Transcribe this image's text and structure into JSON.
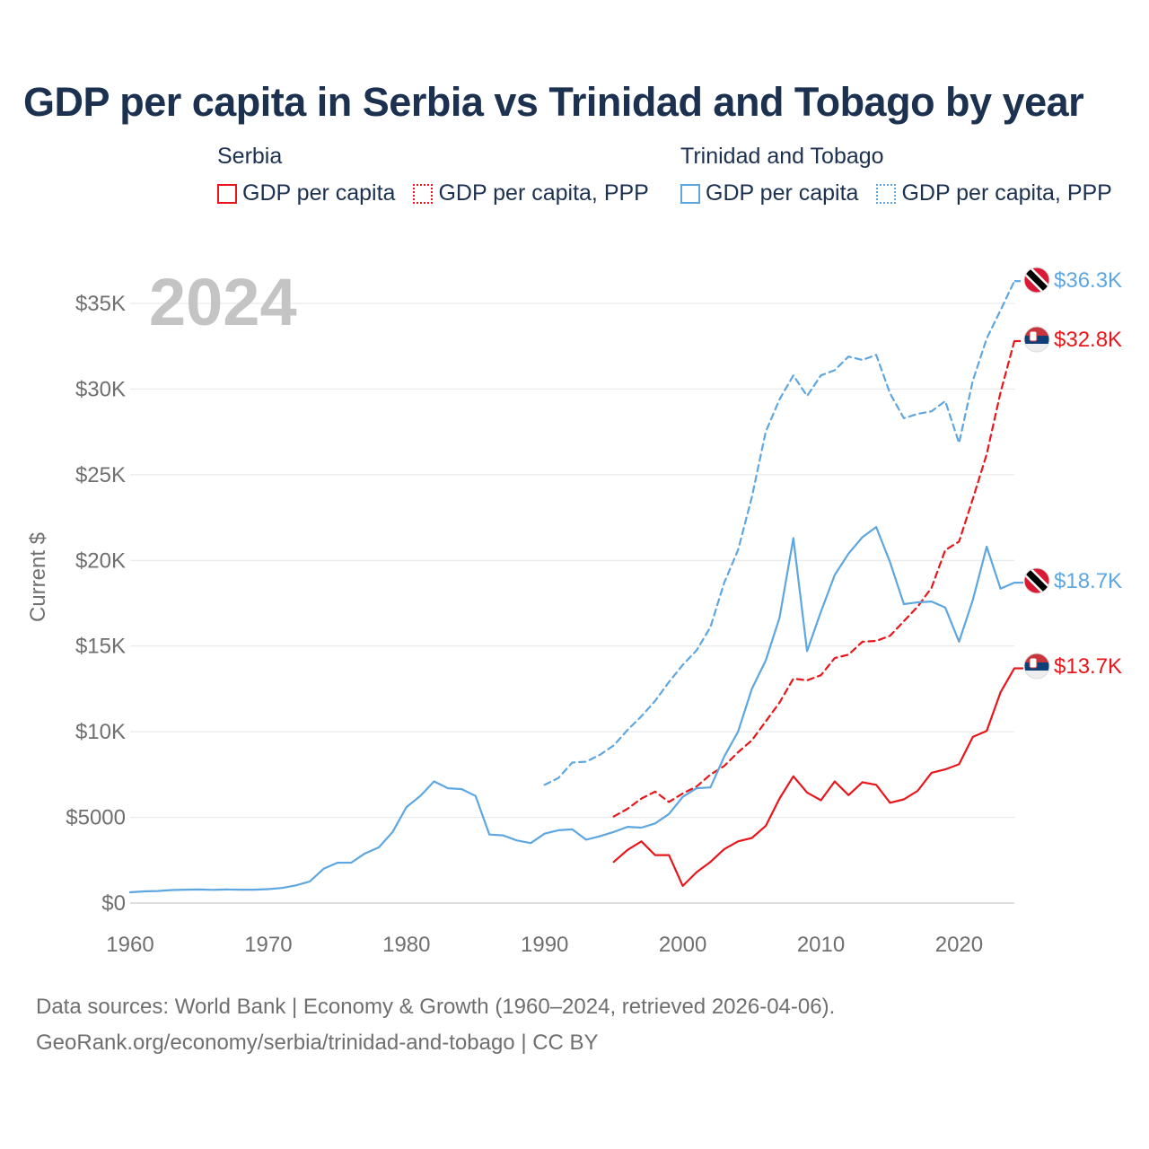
{
  "title": "GDP per capita in Serbia vs Trinidad and Tobago by year",
  "legend": {
    "groups": [
      {
        "country": "Serbia",
        "color": "#e8161b",
        "items": [
          "GDP per capita",
          "GDP per capita, PPP"
        ]
      },
      {
        "country": "Trinidad and Tobago",
        "color": "#5ea6e0",
        "items": [
          "GDP per capita",
          "GDP per capita, PPP"
        ]
      }
    ]
  },
  "footer": {
    "sources": "Data sources: World Bank | Economy & Growth (1960–2024, retrieved 2026-04-06).",
    "url": "GeoRank.org/economy/serbia/trinidad-and-tobago | CC BY"
  },
  "chart_data": {
    "type": "line",
    "title": "GDP per capita in Serbia vs Trinidad and Tobago by year",
    "year_label": "2024",
    "xlabel": "",
    "ylabel": "Current $",
    "xlim": [
      1960,
      2024
    ],
    "ylim": [
      0,
      36300
    ],
    "x_ticks": [
      1960,
      1970,
      1980,
      1990,
      2000,
      2010,
      2020
    ],
    "x_tick_labels": [
      "1960",
      "1970",
      "1980",
      "1990",
      "2000",
      "2010",
      "2020"
    ],
    "y_ticks": [
      0,
      5000,
      10000,
      15000,
      20000,
      25000,
      30000,
      35000
    ],
    "y_tick_labels": [
      "$0",
      "$5000",
      "$10K",
      "$15K",
      "$20K",
      "$25K",
      "$30K",
      "$35K"
    ],
    "grid": true,
    "series": [
      {
        "name": "Serbia — GDP per capita",
        "country": "Serbia",
        "color": "#e8161b",
        "dash": "solid",
        "end_label": "$13.7K",
        "x": [
          1995,
          1996,
          1997,
          1998,
          1999,
          2000,
          2001,
          2002,
          2003,
          2004,
          2005,
          2006,
          2007,
          2008,
          2009,
          2010,
          2011,
          2012,
          2013,
          2014,
          2015,
          2016,
          2017,
          2018,
          2019,
          2020,
          2021,
          2022,
          2023,
          2024
        ],
        "values": [
          2400,
          3100,
          3600,
          2800,
          2800,
          1000,
          1800,
          2400,
          3150,
          3600,
          3800,
          4500,
          6100,
          7400,
          6450,
          6000,
          7100,
          6300,
          7050,
          6900,
          5850,
          6050,
          6550,
          7600,
          7800,
          8100,
          9700,
          10050,
          12300,
          13700
        ]
      },
      {
        "name": "Serbia — GDP per capita, PPP",
        "country": "Serbia",
        "color": "#e8161b",
        "dash": "dashed",
        "end_label": "$32.8K",
        "x": [
          1995,
          1996,
          1997,
          1998,
          1999,
          2000,
          2001,
          2002,
          2003,
          2004,
          2005,
          2006,
          2007,
          2008,
          2009,
          2010,
          2011,
          2012,
          2013,
          2014,
          2015,
          2016,
          2017,
          2018,
          2019,
          2020,
          2021,
          2022,
          2023,
          2024
        ],
        "values": [
          5050,
          5500,
          6100,
          6500,
          5900,
          6400,
          6800,
          7500,
          8000,
          8800,
          9500,
          10600,
          11700,
          13100,
          13000,
          13300,
          14300,
          14500,
          15250,
          15300,
          15600,
          16450,
          17300,
          18400,
          20600,
          21100,
          23600,
          26200,
          29800,
          32800
        ]
      },
      {
        "name": "Trinidad and Tobago — GDP per capita",
        "country": "Trinidad and Tobago",
        "color": "#5ea6e0",
        "dash": "solid",
        "end_label": "$18.7K",
        "x": [
          1960,
          1961,
          1962,
          1963,
          1964,
          1965,
          1966,
          1967,
          1968,
          1969,
          1970,
          1971,
          1972,
          1973,
          1974,
          1975,
          1976,
          1977,
          1978,
          1979,
          1980,
          1981,
          1982,
          1983,
          1984,
          1985,
          1986,
          1987,
          1988,
          1989,
          1990,
          1991,
          1992,
          1993,
          1994,
          1995,
          1996,
          1997,
          1998,
          1999,
          2000,
          2001,
          2002,
          2003,
          2004,
          2005,
          2006,
          2007,
          2008,
          2009,
          2010,
          2011,
          2012,
          2013,
          2014,
          2015,
          2016,
          2017,
          2018,
          2019,
          2020,
          2021,
          2022,
          2023,
          2024
        ],
        "values": [
          630,
          680,
          700,
          760,
          780,
          790,
          770,
          790,
          780,
          780,
          810,
          880,
          1030,
          1260,
          2000,
          2350,
          2360,
          2900,
          3250,
          4150,
          5600,
          6250,
          7100,
          6700,
          6650,
          6250,
          4000,
          3950,
          3650,
          3500,
          4050,
          4250,
          4300,
          3700,
          3900,
          4150,
          4450,
          4400,
          4650,
          5200,
          6200,
          6700,
          6750,
          8550,
          10000,
          12500,
          14150,
          16650,
          21300,
          14700,
          17000,
          19150,
          20400,
          21350,
          21950,
          19900,
          17450,
          17550,
          17600,
          17250,
          15250,
          17700,
          20800,
          18350,
          18700
        ]
      },
      {
        "name": "Trinidad and Tobago — GDP per capita, PPP",
        "country": "Trinidad and Tobago",
        "color": "#5ea6e0",
        "dash": "dashed",
        "end_label": "$36.3K",
        "x": [
          1990,
          1991,
          1992,
          1993,
          1994,
          1995,
          1996,
          1997,
          1998,
          1999,
          2000,
          2001,
          2002,
          2003,
          2004,
          2005,
          2006,
          2007,
          2008,
          2009,
          2010,
          2011,
          2012,
          2013,
          2014,
          2015,
          2016,
          2017,
          2018,
          2019,
          2020,
          2021,
          2022,
          2023,
          2024
        ],
        "values": [
          6900,
          7300,
          8200,
          8250,
          8650,
          9200,
          10100,
          10900,
          11800,
          12900,
          13900,
          14750,
          16100,
          18700,
          20600,
          23700,
          27500,
          29400,
          30800,
          29600,
          30800,
          31100,
          31900,
          31700,
          32000,
          29750,
          28300,
          28550,
          28700,
          29300,
          26850,
          30500,
          32950,
          34600,
          36300
        ]
      }
    ]
  }
}
